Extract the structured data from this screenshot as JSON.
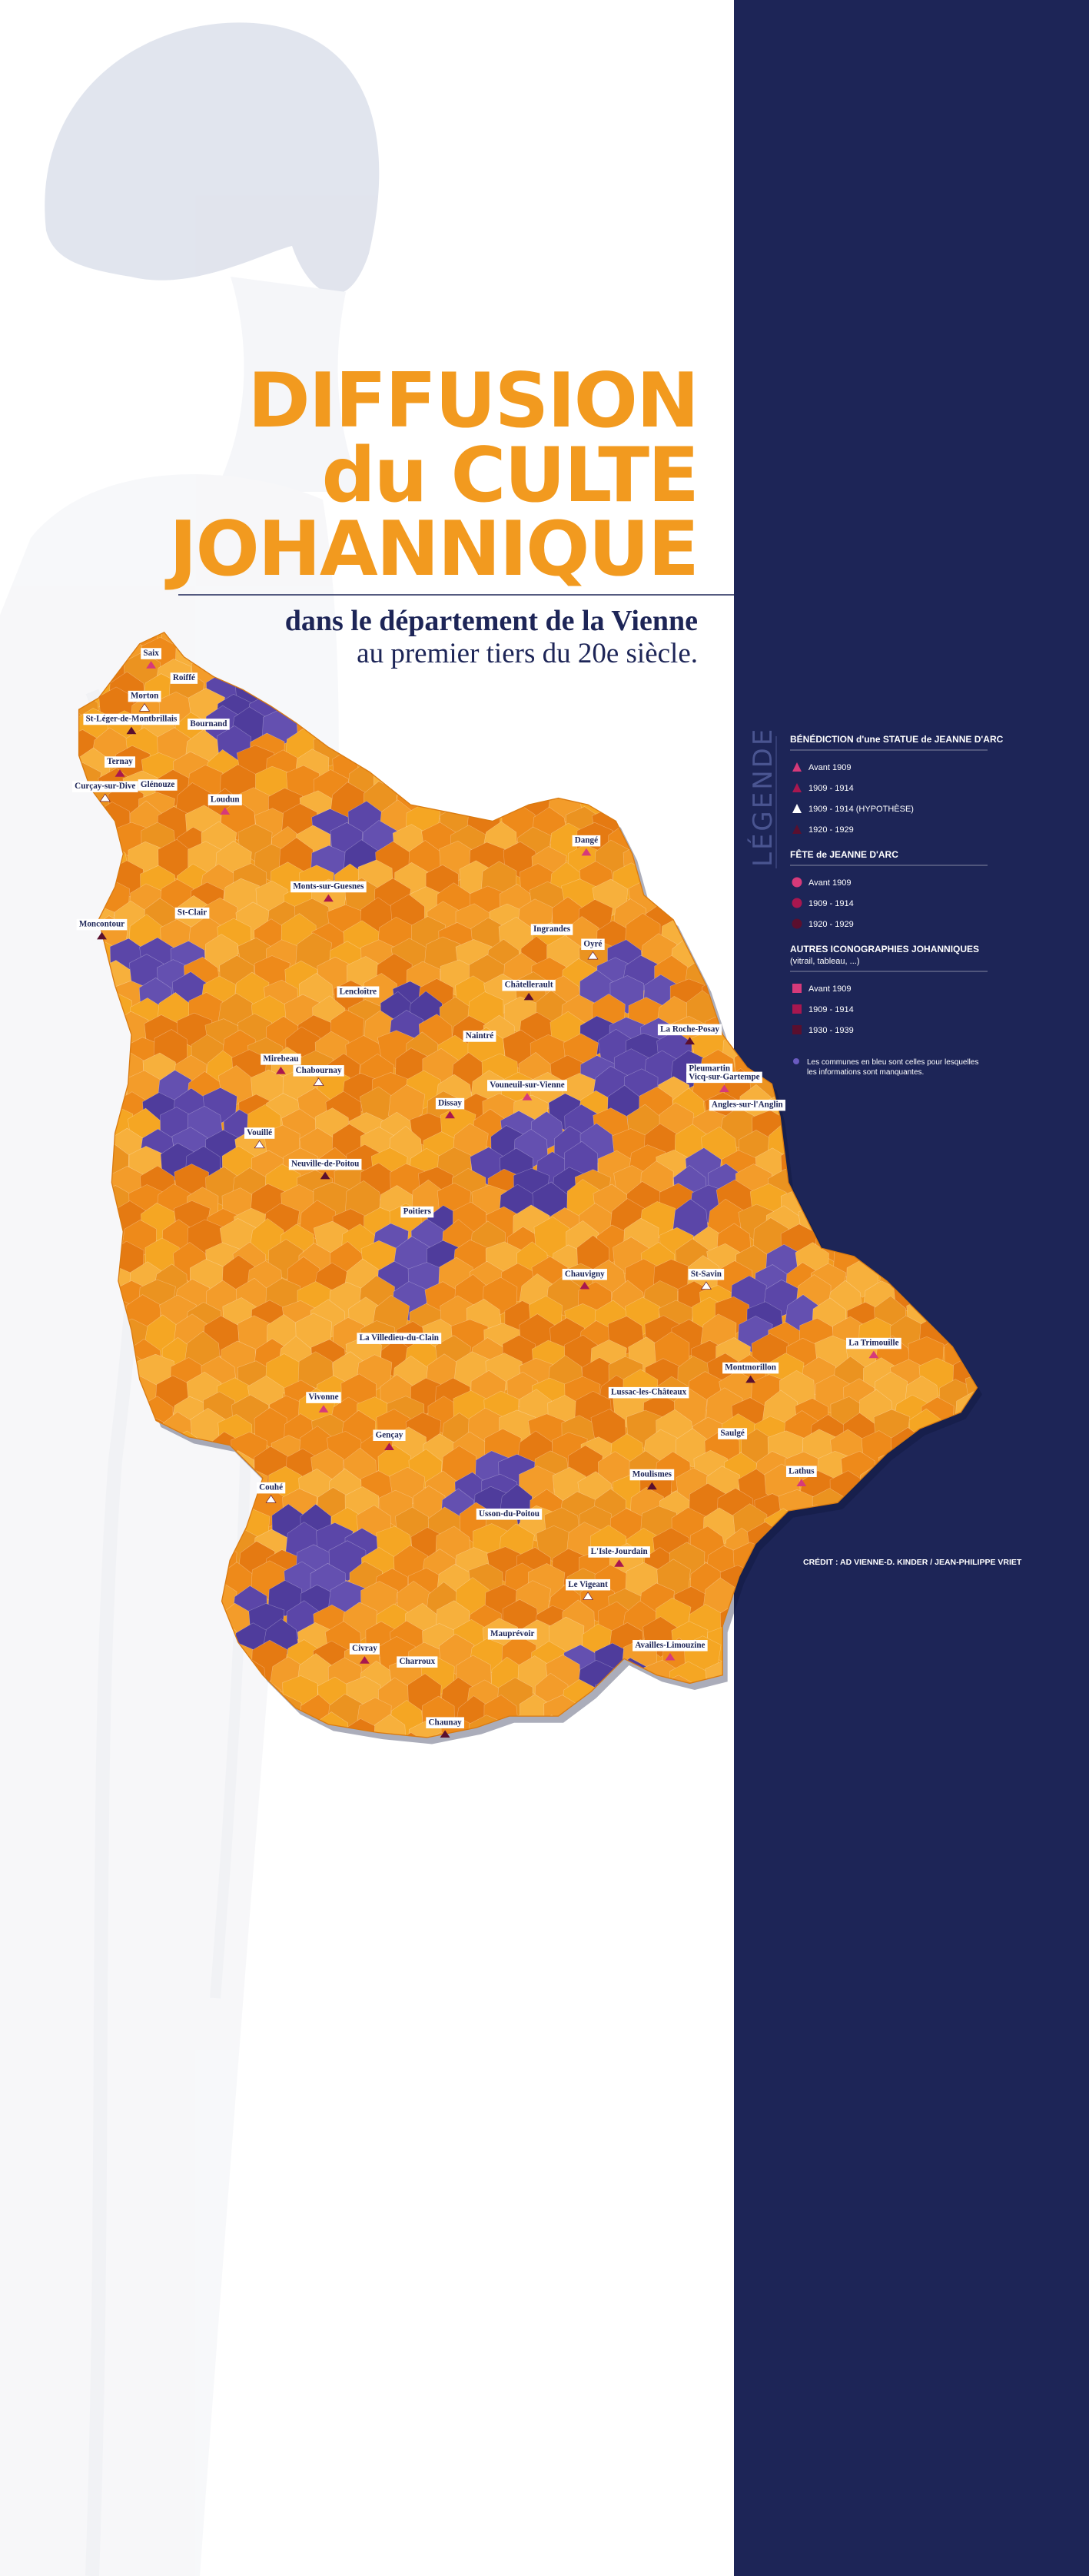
{
  "title": {
    "lines": [
      "DIFFUSION",
      "du CULTE",
      "JOHANNIQUE"
    ]
  },
  "subtitle": {
    "lines": [
      "dans le département de la Vienne",
      "au premier tiers du 20e siècle."
    ]
  },
  "legend": {
    "title": "LÉGENDE",
    "groups": [
      {
        "heading": "BÉNÉDICTION d'une STATUE de JEANNE D'ARC",
        "items": [
          "Avant 1909",
          "1909 - 1914",
          "1909 - 1914 (HYPOTHÈSE)",
          "1920 - 1929"
        ]
      },
      {
        "heading": "FÊTE de JEANNE D'ARC",
        "items": [
          "Avant 1909",
          "1909 - 1914",
          "1920 - 1929"
        ]
      },
      {
        "heading": "AUTRES ICONOGRAPHIES JOHANNIQUES",
        "subheading": "(vitrail, tableau, ...)",
        "items": [
          "Avant 1909",
          "1909 - 1914",
          "1930 - 1939"
        ]
      }
    ],
    "note": [
      "Les communes en bleu sont celles pour lesquelles",
      "les informations sont manquantes."
    ]
  },
  "credit": "CRÉDIT : AD VIENNE-D. KINDER / JEAN-PHILIPPE VRIET",
  "map": {
    "communes": [
      "Saix",
      "Roiffé",
      "Morton",
      "St-Léger-de-Montbrillais",
      "Bournand",
      "Ternay",
      "Curçay-sur-Dive",
      "Glénouze",
      "Loudun",
      "Monts-sur-Guesnes",
      "St-Clair",
      "Moncontour",
      "Dangé",
      "Ingrandes",
      "Oyré",
      "Châtellerault",
      "Lencloître",
      "Mirebeau",
      "Chabournay",
      "Naintré",
      "Vouneuil-sur-Vienne",
      "Dissay",
      "Pleumartin",
      "La Roche-Posay",
      "Vicq-sur-Gartempe",
      "Angles-sur-l'Anglin",
      "Vouillé",
      "Neuville-de-Poitou",
      "Poitiers",
      "Chauvigny",
      "St-Savin",
      "La Villedieu-du-Clain",
      "Vivonne",
      "Gençay",
      "Lussac-les-Châteaux",
      "Montmorillon",
      "La Trimouille",
      "Saulgé",
      "Couhé",
      "Moulismes",
      "Usson-du-Poitou",
      "L'Isle-Jourdain",
      "Le Vigeant",
      "Mauprévoir",
      "Availles-Limouzine",
      "Civray",
      "Charroux",
      "Chaunay",
      "Lathus"
    ]
  }
}
